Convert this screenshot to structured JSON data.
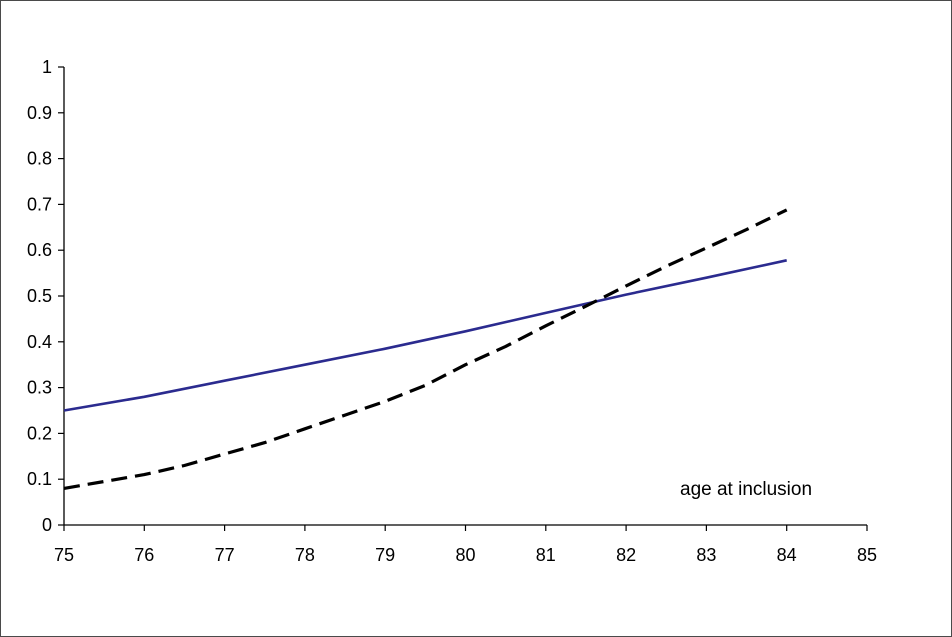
{
  "chart_data": {
    "type": "line",
    "title": "",
    "xlabel": "",
    "ylabel": "",
    "annotation": "age at inclusion",
    "xlim": [
      75,
      85
    ],
    "ylim": [
      0,
      1
    ],
    "x_ticks": [
      75,
      76,
      77,
      78,
      79,
      80,
      81,
      82,
      83,
      84,
      85
    ],
    "y_ticks": [
      0,
      0.1,
      0.2,
      0.3,
      0.4,
      0.5,
      0.6,
      0.7,
      0.8,
      0.9,
      1
    ],
    "y_tick_labels": [
      "0",
      "0.1",
      "0.2",
      "0.3",
      "0.4",
      "0.5",
      "0.6",
      "0.7",
      "0.8",
      "0.9",
      "1"
    ],
    "grid": false,
    "series": [
      {
        "style": "solid",
        "color": "#2b2b8f",
        "x": [
          75,
          76,
          77,
          78,
          79,
          80,
          81,
          82,
          83,
          84
        ],
        "y": [
          0.25,
          0.28,
          0.315,
          0.35,
          0.385,
          0.423,
          0.463,
          0.503,
          0.54,
          0.578
        ]
      },
      {
        "style": "dashed",
        "color": "#000000",
        "x": [
          75,
          75.5,
          76,
          76.5,
          77,
          77.5,
          78,
          78.5,
          79,
          79.5,
          80,
          80.5,
          81,
          81.5,
          82,
          82.5,
          83,
          83.5,
          84
        ],
        "y": [
          0.08,
          0.095,
          0.11,
          0.13,
          0.155,
          0.18,
          0.21,
          0.24,
          0.27,
          0.305,
          0.35,
          0.39,
          0.435,
          0.478,
          0.522,
          0.565,
          0.605,
          0.645,
          0.688
        ]
      }
    ]
  }
}
